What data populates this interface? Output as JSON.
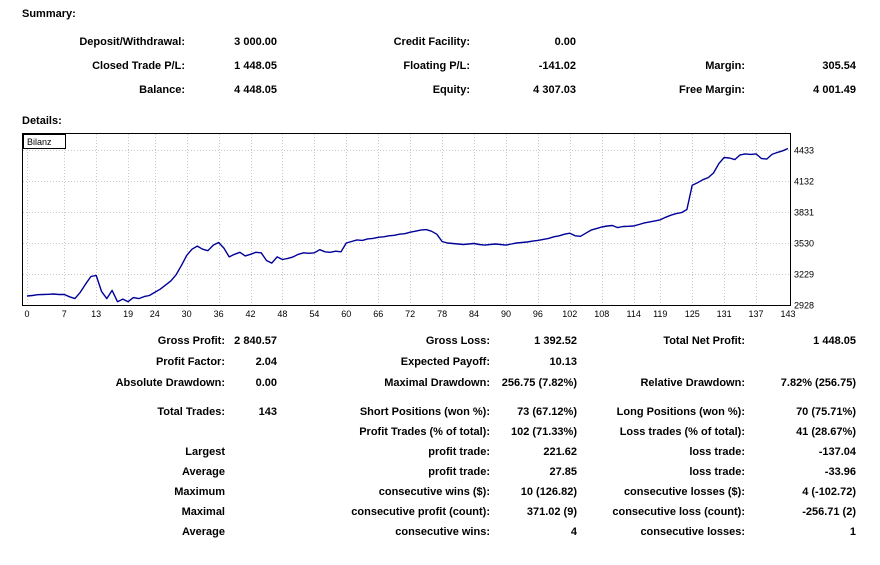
{
  "summary": {
    "title": "Summary:",
    "rows": [
      {
        "l1": "Deposit/Withdrawal:",
        "v1": "3 000.00",
        "l2": "Credit Facility:",
        "v2": "0.00",
        "l3": "",
        "v3": ""
      },
      {
        "l1": "Closed Trade P/L:",
        "v1": "1 448.05",
        "l2": "Floating P/L:",
        "v2": "-141.02",
        "l3": "Margin:",
        "v3": "305.54"
      },
      {
        "l1": "Balance:",
        "v1": "4 448.05",
        "l2": "Equity:",
        "v2": "4 307.03",
        "l3": "Free Margin:",
        "v3": "4 001.49"
      }
    ]
  },
  "details": {
    "title": "Details:"
  },
  "chart_data": {
    "type": "line",
    "title": "Bilanz",
    "xlabel": "",
    "ylabel": "",
    "line_color": "#000099",
    "grid": "dotted",
    "legend_position": "top-left",
    "x_ticks": [
      0,
      7,
      13,
      19,
      24,
      30,
      36,
      42,
      48,
      54,
      60,
      66,
      72,
      78,
      84,
      90,
      96,
      102,
      108,
      114,
      119,
      125,
      131,
      137,
      143
    ],
    "y_ticks": [
      2928,
      3229,
      3530,
      3831,
      4132,
      4433
    ],
    "xlim": [
      0,
      143
    ],
    "series": [
      {
        "name": "Bilanz",
        "values": [
          3015,
          3020,
          3028,
          3030,
          3032,
          3035,
          3030,
          3030,
          3008,
          2990,
          3050,
          3130,
          3205,
          3215,
          3060,
          2990,
          3070,
          2960,
          2985,
          2960,
          3000,
          2990,
          3010,
          3020,
          3050,
          3080,
          3120,
          3160,
          3220,
          3310,
          3410,
          3470,
          3500,
          3470,
          3455,
          3510,
          3535,
          3480,
          3395,
          3420,
          3440,
          3405,
          3420,
          3440,
          3435,
          3360,
          3335,
          3395,
          3370,
          3380,
          3395,
          3420,
          3435,
          3430,
          3435,
          3465,
          3445,
          3440,
          3450,
          3445,
          3530,
          3545,
          3560,
          3555,
          3570,
          3575,
          3585,
          3590,
          3600,
          3605,
          3615,
          3620,
          3635,
          3645,
          3655,
          3660,
          3645,
          3615,
          3545,
          3530,
          3525,
          3520,
          3515,
          3520,
          3525,
          3515,
          3510,
          3515,
          3520,
          3515,
          3510,
          3520,
          3530,
          3535,
          3540,
          3548,
          3555,
          3565,
          3575,
          3590,
          3600,
          3615,
          3625,
          3600,
          3595,
          3625,
          3655,
          3670,
          3685,
          3695,
          3700,
          3680,
          3690,
          3692,
          3695,
          3710,
          3725,
          3735,
          3745,
          3755,
          3780,
          3800,
          3815,
          3825,
          3855,
          4090,
          4115,
          4145,
          4165,
          4210,
          4300,
          4360,
          4355,
          4340,
          4385,
          4395,
          4390,
          4395,
          4350,
          4345,
          4390,
          4410,
          4425,
          4448
        ]
      }
    ]
  },
  "stats": {
    "rows": [
      {
        "l1": "Gross Profit:",
        "v1": "2 840.57",
        "l2": "Gross Loss:",
        "v2": "1 392.52",
        "l3": "Total Net Profit:",
        "v3": "1 448.05"
      },
      {
        "l1": "Profit Factor:",
        "v1": "2.04",
        "l2": "Expected Payoff:",
        "v2": "10.13",
        "l3": "",
        "v3": ""
      },
      {
        "l1": "Absolute Drawdown:",
        "v1": "0.00",
        "l2": "Maximal Drawdown:",
        "v2": "256.75 (7.82%)",
        "l3": "Relative Drawdown:",
        "v3": "7.82% (256.75)"
      },
      {
        "l1": "Total Trades:",
        "v1": "143",
        "l2": "Short Positions (won %):",
        "v2": "73 (67.12%)",
        "l3": "Long Positions (won %):",
        "v3": "70 (75.71%)"
      },
      {
        "l1": "",
        "v1": "",
        "l2": "Profit Trades (% of total):",
        "v2": "102 (71.33%)",
        "l3": "Loss trades (% of total):",
        "v3": "41 (28.67%)"
      },
      {
        "l1": "Largest",
        "v1": "",
        "l2": "profit trade:",
        "v2": "221.62",
        "l3": "loss trade:",
        "v3": "-137.04"
      },
      {
        "l1": "Average",
        "v1": "",
        "l2": "profit trade:",
        "v2": "27.85",
        "l3": "loss trade:",
        "v3": "-33.96"
      },
      {
        "l1": "Maximum",
        "v1": "",
        "l2": "consecutive wins ($):",
        "v2": "10 (126.82)",
        "l3": "consecutive losses ($):",
        "v3": "4 (-102.72)"
      },
      {
        "l1": "Maximal",
        "v1": "",
        "l2": "consecutive profit (count):",
        "v2": "371.02 (9)",
        "l3": "consecutive loss (count):",
        "v3": "-256.71 (2)"
      },
      {
        "l1": "Average",
        "v1": "",
        "l2": "consecutive wins:",
        "v2": "4",
        "l3": "consecutive losses:",
        "v3": "1"
      }
    ]
  }
}
